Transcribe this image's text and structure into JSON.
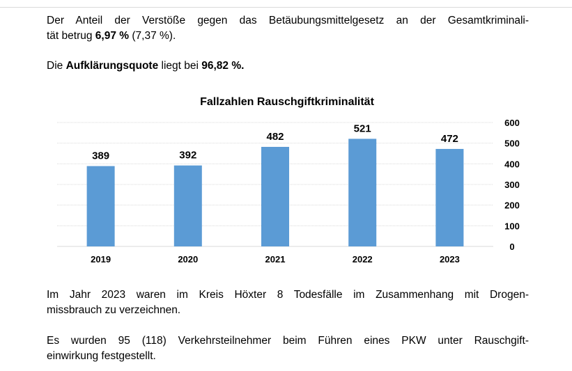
{
  "paragraphs": {
    "p1": {
      "line1": "Der Anteil der Verstöße gegen das Betäubungsmittelgesetz an der Gesamtkriminali-",
      "line2_pre": "tät betrug ",
      "line2_bold": "6,97 %",
      "line2_post": " (7,37 %)."
    },
    "p2": {
      "pre": "Die ",
      "bold1": "Aufklärungsquote",
      "mid": " liegt bei ",
      "bold2": "96,82 %."
    },
    "p3": {
      "line1": "Im Jahr 2023 waren im Kreis Höxter 8 Todesfälle im Zusammenhang mit Drogen-",
      "line2": "missbrauch zu verzeichnen."
    },
    "p4": {
      "line1": "Es wurden 95 (118) Verkehrsteilnehmer beim Führen eines PKW unter Rauschgift-",
      "line2": "einwirkung festgestellt."
    }
  },
  "chart_data": {
    "type": "bar",
    "title": "Fallzahlen Rauschgiftkriminalität",
    "categories": [
      "2019",
      "2020",
      "2021",
      "2022",
      "2023"
    ],
    "values": [
      389,
      392,
      482,
      521,
      472
    ],
    "data_labels": [
      "389",
      "392",
      "482",
      "521",
      "472"
    ],
    "ylim": [
      0,
      600
    ],
    "yticks": [
      "0",
      "100",
      "200",
      "300",
      "400",
      "500",
      "600"
    ],
    "y_axis_side": "right",
    "grid": true,
    "legend": false,
    "bar_color": "#5b9bd5",
    "grid_color": "#d9d9d9"
  }
}
